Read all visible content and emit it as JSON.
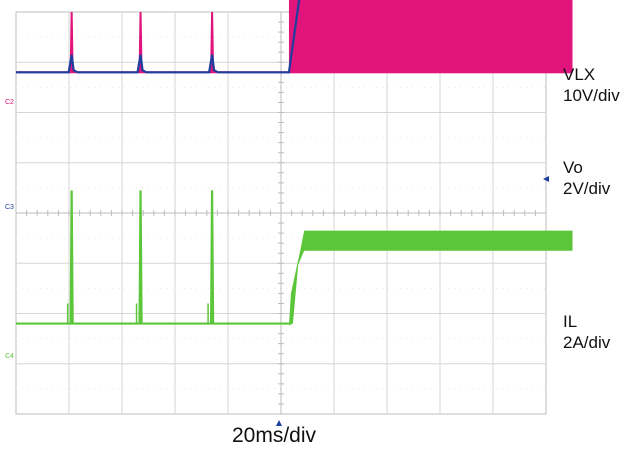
{
  "chart_data": {
    "type": "line",
    "title": "",
    "grid": true,
    "grid_divisions": {
      "x": 10,
      "y": 8
    },
    "time_per_div_ms": 20,
    "xlabel": "20ms/div",
    "trigger_time_ms": 103,
    "end_time_ms": 210,
    "series": [
      {
        "channel_tag": "C2",
        "name": "VLX",
        "scale": "10V/div",
        "color": "#e0147a",
        "baseline_div": 0.8,
        "style": "switching",
        "pulses_ms": [
          21,
          47,
          74
        ],
        "pulse_height_div": 1.2,
        "switching_start_ms": 103,
        "switching_level_div": 1.6
      },
      {
        "channel_tag": "C3",
        "name": "Vo",
        "scale": "2V/div",
        "color": "#1f3f9e",
        "baseline_div": 2.8,
        "style": "ramp",
        "blips_ms": [
          21,
          47,
          74
        ],
        "blip_height_div": 0.35,
        "ramp_start_ms": 103,
        "ramp_end_ms": 108,
        "final_level_div": 4.45
      },
      {
        "channel_tag": "C4",
        "name": "IL",
        "scale": "2A/div",
        "color": "#5cc63a",
        "baseline_div": 0.8,
        "style": "current",
        "spikes_ms": [
          21,
          47,
          74
        ],
        "spike_height_div": 2.65,
        "ramp_start_ms": 103,
        "ramp_end_ms": 108,
        "final_level_div": 2.45,
        "ripple_div": 0.4
      }
    ]
  },
  "labels": {
    "vlx_name": "VLX",
    "vlx_scale": "10V/div",
    "vo_name": "Vo",
    "vo_scale": "2V/div",
    "il_name": "IL",
    "il_scale": "2A/div",
    "c2": "C2",
    "c3": "C3",
    "c4": "C4",
    "xlabel": "20ms/div"
  }
}
